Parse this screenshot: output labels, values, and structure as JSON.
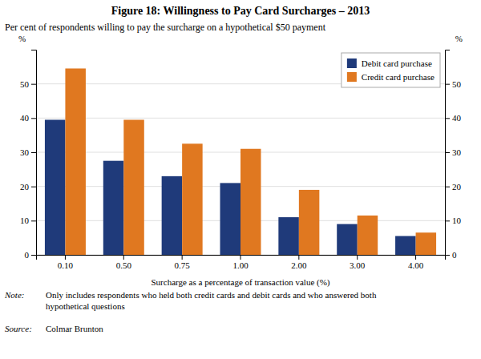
{
  "chart_data": {
    "type": "bar",
    "title": "Figure 18: Willingness to Pay Card Surcharges – 2013",
    "subtitle": "Per cent of respondents willing to pay the surcharge on a hypothetical $50 payment",
    "xlabel": "Surcharge as a percentage of transaction value (%)",
    "ylabel": "%",
    "y2label": "%",
    "categories": [
      "0.10",
      "0.50",
      "0.75",
      "1.00",
      "2.00",
      "3.00",
      "4.00"
    ],
    "series": [
      {
        "name": "Debit card purchase",
        "color": "#1F3A7A",
        "values": [
          39.5,
          27.5,
          23.0,
          21.0,
          11.0,
          9.0,
          5.5
        ]
      },
      {
        "name": "Credit card purchase",
        "color": "#E07820",
        "values": [
          54.5,
          39.5,
          32.5,
          31.0,
          19.0,
          11.5,
          6.5
        ]
      }
    ],
    "ylim": [
      0,
      60
    ],
    "yticks": [
      0,
      10,
      20,
      30,
      40,
      50
    ],
    "y2lim": [
      0,
      60
    ],
    "y2ticks": [
      0,
      10,
      20,
      30,
      40,
      50
    ],
    "grid": true,
    "legend": "upper-right",
    "annotations": [
      "Note:",
      "Only includes respondents who held both credit cards and debit cards and who answered both\nhypothetical questions",
      "Source:",
      "Colmar Brunton"
    ]
  }
}
